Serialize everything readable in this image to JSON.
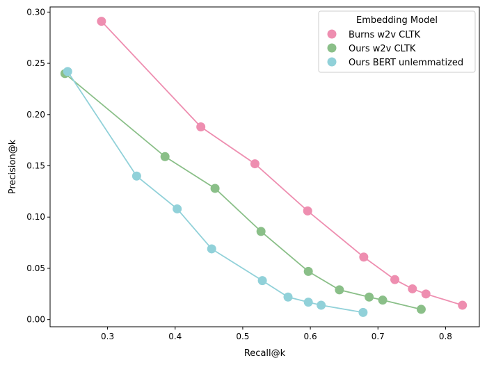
{
  "chart_data": {
    "type": "line",
    "xlabel": "Recall@k",
    "ylabel": "Precision@k",
    "xlim": [
      0.215,
      0.85
    ],
    "ylim": [
      -0.007,
      0.305
    ],
    "xticks": [
      0.3,
      0.4,
      0.5,
      0.6,
      0.7,
      0.8
    ],
    "xtick_labels": [
      "0.3",
      "0.4",
      "0.5",
      "0.6",
      "0.7",
      "0.8"
    ],
    "yticks": [
      0.0,
      0.05,
      0.1,
      0.15,
      0.2,
      0.25,
      0.3
    ],
    "ytick_labels": [
      "0.00",
      "0.05",
      "0.10",
      "0.15",
      "0.20",
      "0.25",
      "0.30"
    ],
    "grid": false,
    "legend": {
      "title": "Embedding Model",
      "placement": "top-right"
    },
    "series": [
      {
        "name": "Burns w2v CLTK",
        "color": "#ee8eb0",
        "x": [
          0.291,
          0.438,
          0.518,
          0.596,
          0.679,
          0.725,
          0.751,
          0.771,
          0.825
        ],
        "y": [
          0.291,
          0.188,
          0.152,
          0.106,
          0.061,
          0.039,
          0.03,
          0.025,
          0.014
        ]
      },
      {
        "name": "Ours w2v CLTK",
        "color": "#8abf88",
        "x": [
          0.237,
          0.385,
          0.459,
          0.527,
          0.597,
          0.643,
          0.687,
          0.707,
          0.764
        ],
        "y": [
          0.24,
          0.159,
          0.128,
          0.086,
          0.047,
          0.029,
          0.022,
          0.019,
          0.01
        ]
      },
      {
        "name": "Ours BERT unlemmatized",
        "color": "#91d1d9",
        "x": [
          0.241,
          0.343,
          0.403,
          0.454,
          0.529,
          0.567,
          0.597,
          0.616,
          0.678
        ],
        "y": [
          0.242,
          0.14,
          0.108,
          0.069,
          0.038,
          0.022,
          0.017,
          0.014,
          0.007
        ]
      }
    ]
  }
}
